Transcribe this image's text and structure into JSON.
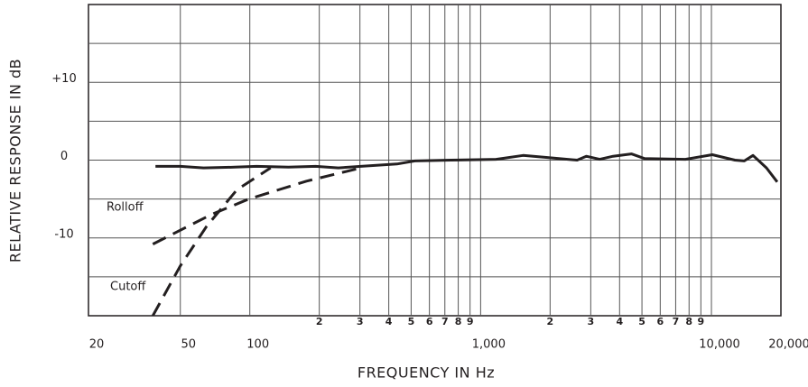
{
  "chart_data": {
    "type": "line",
    "ylabel": "RELATIVE RESPONSE IN dB",
    "xlabel": "FREQUENCY IN Hz",
    "xscale": "log",
    "xlim": [
      20,
      20000
    ],
    "ylim": [
      -20,
      20
    ],
    "xticks": [
      20,
      50,
      100,
      {
        "value": 1000,
        "label": "1,000"
      },
      {
        "value": 10000,
        "label": "10,000"
      },
      {
        "value": 20000,
        "label": "20,000"
      }
    ],
    "xminor_ticks": [
      {
        "value": 200,
        "label": "2"
      },
      {
        "value": 300,
        "label": "3"
      },
      {
        "value": 400,
        "label": "4"
      },
      {
        "value": 500,
        "label": "5"
      },
      {
        "value": 600,
        "label": "6"
      },
      {
        "value": 700,
        "label": "7"
      },
      {
        "value": 800,
        "label": "8"
      },
      {
        "value": 900,
        "label": "9"
      },
      {
        "value": 2000,
        "label": "2"
      },
      {
        "value": 3000,
        "label": "3"
      },
      {
        "value": 4000,
        "label": "4"
      },
      {
        "value": 5000,
        "label": "5"
      },
      {
        "value": 6000,
        "label": "6"
      },
      {
        "value": 7000,
        "label": "7"
      },
      {
        "value": 8000,
        "label": "8"
      },
      {
        "value": 9000,
        "label": "9"
      }
    ],
    "xgrid": [
      50,
      100,
      200,
      300,
      400,
      500,
      600,
      700,
      800,
      900,
      1000,
      2000,
      3000,
      4000,
      5000,
      6000,
      7000,
      8000,
      9000,
      10000
    ],
    "yticks": [
      {
        "value": 10,
        "label": "+10"
      },
      0,
      -10
    ],
    "ygrid": [
      -15,
      -10,
      -5,
      0,
      5,
      10,
      15
    ],
    "grid": true,
    "series": [
      {
        "color": "#231f20",
        "style": "solid",
        "x": [
          39,
          50,
          63,
          86,
          107,
          147,
          193,
          242,
          303,
          434,
          519,
          743,
          1167,
          1528,
          2000,
          2620,
          2870,
          3280,
          3750,
          4500,
          5140,
          7710,
          10090,
          12650,
          13870,
          15140,
          17310,
          19270
        ],
        "values": [
          -0.8,
          -0.8,
          -1.0,
          -0.9,
          -0.8,
          -0.9,
          -0.8,
          -1.0,
          -0.8,
          -0.5,
          -0.1,
          0,
          0.1,
          0.6,
          0.3,
          0,
          0.5,
          0.1,
          0.5,
          0.8,
          0.2,
          0.1,
          0.7,
          0,
          -0.1,
          0.6,
          -1.0,
          -2.8
        ]
      },
      {
        "name": "Rolloff",
        "color": "#231f20",
        "style": "dashed",
        "x": [
          38,
          68,
          99,
          176,
          303
        ],
        "values": [
          -10.8,
          -7.0,
          -5.0,
          -2.7,
          -1.0
        ]
      },
      {
        "name": "Cutoff",
        "color": "#231f20",
        "style": "dashed",
        "x": [
          38,
          50,
          65,
          88,
          123
        ],
        "values": [
          -20,
          -13.6,
          -8.5,
          -3.8,
          -1.0
        ]
      }
    ]
  }
}
